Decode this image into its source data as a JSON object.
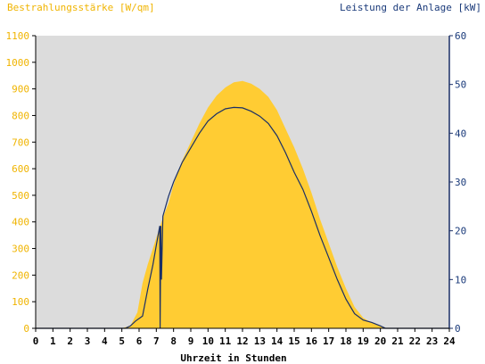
{
  "chart_data": {
    "type": "area",
    "left_axis_label": "Bestrahlungsstärke [W/qm]",
    "right_axis_label": "Leistung der Anlage [kW]",
    "xlabel": "Uhrzeit in Stunden",
    "xlim": [
      0,
      24
    ],
    "ylim_left": [
      0,
      1100
    ],
    "ylim_right": [
      0,
      60
    ],
    "x_ticks": [
      "0",
      "1",
      "2",
      "3",
      "4",
      "5",
      "6",
      "7",
      "8",
      "9",
      "10",
      "11",
      "12",
      "13",
      "14",
      "15",
      "16",
      "17",
      "18",
      "19",
      "20",
      "21",
      "22",
      "23",
      "24"
    ],
    "y_ticks_left": [
      "0",
      "100",
      "200",
      "300",
      "400",
      "500",
      "600",
      "700",
      "800",
      "900",
      "1000",
      "1100"
    ],
    "y_ticks_right": [
      "0",
      "10",
      "20",
      "30",
      "40",
      "50",
      "60"
    ],
    "colors": {
      "irradiance": "#ffcc33",
      "power": "#1a2f66",
      "plot_bg": "#dcdcdc",
      "left_axis_text": "#f0b400",
      "right_axis_text": "#1a3a7a"
    },
    "series": [
      {
        "name": "Bestrahlungsstärke [W/qm]",
        "axis": "left",
        "type": "area",
        "points": [
          [
            0,
            0
          ],
          [
            5.0,
            0
          ],
          [
            5.5,
            10
          ],
          [
            5.9,
            60
          ],
          [
            6.2,
            170
          ],
          [
            6.5,
            240
          ],
          [
            6.8,
            300
          ],
          [
            7.0,
            340
          ],
          [
            7.2,
            380
          ],
          [
            7.4,
            420
          ],
          [
            7.7,
            470
          ],
          [
            8.0,
            540
          ],
          [
            8.5,
            630
          ],
          [
            9.0,
            700
          ],
          [
            9.5,
            770
          ],
          [
            10.0,
            830
          ],
          [
            10.5,
            875
          ],
          [
            11.0,
            905
          ],
          [
            11.5,
            925
          ],
          [
            12.0,
            930
          ],
          [
            12.5,
            920
          ],
          [
            13.0,
            900
          ],
          [
            13.5,
            870
          ],
          [
            14.0,
            820
          ],
          [
            14.5,
            750
          ],
          [
            15.0,
            680
          ],
          [
            15.5,
            600
          ],
          [
            16.0,
            510
          ],
          [
            16.5,
            410
          ],
          [
            17.0,
            320
          ],
          [
            17.5,
            230
          ],
          [
            18.0,
            150
          ],
          [
            18.5,
            80
          ],
          [
            19.0,
            40
          ],
          [
            19.5,
            20
          ],
          [
            20.0,
            10
          ],
          [
            20.3,
            0
          ],
          [
            24,
            0
          ]
        ]
      },
      {
        "name": "Leistung der Anlage [kW]",
        "axis": "right",
        "type": "line",
        "points": [
          [
            0,
            0
          ],
          [
            5.2,
            0
          ],
          [
            5.5,
            0.5
          ],
          [
            5.8,
            1.5
          ],
          [
            6.2,
            2.5
          ],
          [
            6.5,
            8
          ],
          [
            6.8,
            13
          ],
          [
            7.0,
            17
          ],
          [
            7.2,
            21
          ],
          [
            7.22,
            0
          ],
          [
            7.26,
            21
          ],
          [
            7.3,
            10
          ],
          [
            7.38,
            23
          ],
          [
            7.7,
            27
          ],
          [
            8.0,
            30
          ],
          [
            8.5,
            34
          ],
          [
            9.0,
            37
          ],
          [
            9.5,
            40
          ],
          [
            10.0,
            42.5
          ],
          [
            10.5,
            44
          ],
          [
            11.0,
            45
          ],
          [
            11.5,
            45.3
          ],
          [
            12.0,
            45.2
          ],
          [
            12.5,
            44.5
          ],
          [
            13.0,
            43.5
          ],
          [
            13.5,
            42
          ],
          [
            14.0,
            39.5
          ],
          [
            14.5,
            36
          ],
          [
            15.0,
            32
          ],
          [
            15.5,
            28.5
          ],
          [
            16.0,
            24
          ],
          [
            16.5,
            19
          ],
          [
            17.0,
            14.5
          ],
          [
            17.5,
            10
          ],
          [
            18.0,
            6
          ],
          [
            18.5,
            3
          ],
          [
            19.0,
            1.7
          ],
          [
            19.5,
            1.2
          ],
          [
            20.0,
            0.5
          ],
          [
            20.3,
            0
          ],
          [
            24,
            0
          ]
        ]
      }
    ]
  }
}
